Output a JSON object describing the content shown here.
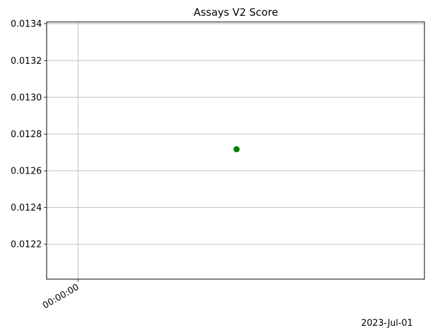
{
  "chart_data": {
    "type": "scatter",
    "title": "Assays V2 Score",
    "xlabel": "",
    "ylabel": "",
    "x_tick_labels": [
      "00:00:00"
    ],
    "x_offset_label": "2023-Jul-01",
    "y_tick_values": [
      0.0122,
      0.0124,
      0.0126,
      0.0128,
      0.013,
      0.0132,
      0.0134
    ],
    "y_tick_labels": [
      "0.0122",
      "0.0124",
      "0.0126",
      "0.0128",
      "0.0130",
      "0.0132",
      "0.0134"
    ],
    "ylim": [
      0.01201,
      0.01341
    ],
    "grid": true,
    "points": [
      {
        "x": "2023-07-01 12:00:00",
        "y": 0.012717
      }
    ],
    "marker_color": "#008000"
  }
}
